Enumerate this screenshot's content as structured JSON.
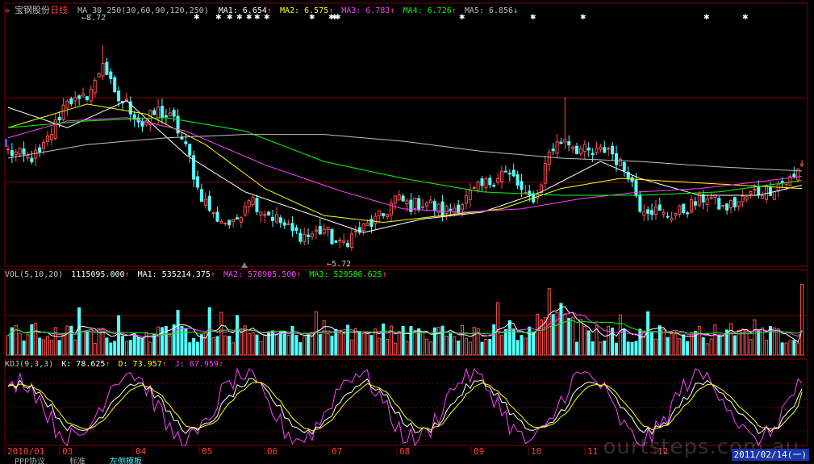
{
  "header": {
    "stock_name": "宝钢股份",
    "period": "日线",
    "ma_label": "MA_30_250(30,60,90,120,250)",
    "ma1": "MA1: 6.654",
    "ma2": "MA2: 6.575",
    "ma3": "MA3: 6.783",
    "ma4": "MA4: 6.726",
    "ma5": "MA5: 6.856"
  },
  "annotations": {
    "high": "8.72",
    "low": "5.72"
  },
  "vol_header": {
    "label": "VOL(5,10,20)",
    "value": "1115095.000",
    "ma1": "MA1: 535214.375",
    "ma2": "MA2: 578905.500",
    "ma3": "MA3: 529586.625"
  },
  "kdj_header": {
    "label": "KDJ(9,3,3)",
    "k": "K: 78.625",
    "d": "D: 73.957",
    "j": "J: 87.959"
  },
  "x_axis": [
    "2010/01",
    "03",
    "04",
    "05",
    "06",
    "07",
    "08",
    "09",
    "10",
    "11",
    "12"
  ],
  "current_date": "2011/02/14(一)",
  "watermark": "ourtsteps.com.au",
  "bottom_tabs": [
    "PPP协议",
    "标准",
    "左侧模板"
  ],
  "colors": {
    "up": "#ff5050",
    "down": "#54ffff",
    "ma1": "#ffffff",
    "ma2": "#ffff00",
    "ma3": "#ff40ff",
    "ma4": "#00ff00",
    "ma5": "#c0c0c0",
    "grid": "#800000"
  },
  "chart_data": {
    "type": "candlestick",
    "price_range": [
      5.45,
      9.15
    ],
    "high_mark": 8.72,
    "low_mark": 5.72,
    "anchor_closes": [
      [
        0,
        7.15
      ],
      [
        5,
        7.05
      ],
      [
        8,
        7.1
      ],
      [
        12,
        7.55
      ],
      [
        15,
        7.95
      ],
      [
        18,
        7.85
      ],
      [
        22,
        8.15
      ],
      [
        24,
        8.5
      ],
      [
        27,
        7.95
      ],
      [
        30,
        7.85
      ],
      [
        34,
        7.55
      ],
      [
        38,
        7.75
      ],
      [
        42,
        7.6
      ],
      [
        46,
        7.05
      ],
      [
        48,
        6.6
      ],
      [
        52,
        6.2
      ],
      [
        57,
        6.05
      ],
      [
        61,
        6.5
      ],
      [
        64,
        6.3
      ],
      [
        68,
        6.15
      ],
      [
        72,
        5.95
      ],
      [
        76,
        5.9
      ],
      [
        80,
        6.0
      ],
      [
        82,
        5.85
      ],
      [
        84,
        5.75
      ],
      [
        87,
        5.9
      ],
      [
        91,
        6.05
      ],
      [
        95,
        6.2
      ],
      [
        98,
        6.45
      ],
      [
        102,
        6.35
      ],
      [
        106,
        6.4
      ],
      [
        110,
        6.25
      ],
      [
        114,
        6.35
      ],
      [
        118,
        6.55
      ],
      [
        122,
        6.7
      ],
      [
        125,
        6.85
      ],
      [
        128,
        6.75
      ],
      [
        131,
        6.45
      ],
      [
        134,
        6.5
      ],
      [
        137,
        7.15
      ],
      [
        139,
        7.25
      ],
      [
        141,
        7.35
      ],
      [
        144,
        7.2
      ],
      [
        148,
        7.1
      ],
      [
        152,
        7.2
      ],
      [
        155,
        6.95
      ],
      [
        157,
        6.85
      ],
      [
        160,
        6.35
      ],
      [
        163,
        6.3
      ],
      [
        166,
        6.2
      ],
      [
        170,
        6.25
      ],
      [
        173,
        6.35
      ],
      [
        177,
        6.5
      ],
      [
        181,
        6.3
      ],
      [
        185,
        6.4
      ],
      [
        189,
        6.55
      ],
      [
        193,
        6.6
      ],
      [
        196,
        6.7
      ],
      [
        199,
        6.75
      ],
      [
        201,
        7.0
      ]
    ],
    "ma_anchors": {
      "ma1": [
        [
          0,
          7.8
        ],
        [
          15,
          7.5
        ],
        [
          30,
          7.9
        ],
        [
          45,
          7.1
        ],
        [
          60,
          6.55
        ],
        [
          75,
          6.25
        ],
        [
          90,
          5.95
        ],
        [
          105,
          6.15
        ],
        [
          120,
          6.25
        ],
        [
          135,
          6.55
        ],
        [
          150,
          7.0
        ],
        [
          160,
          6.75
        ],
        [
          175,
          6.5
        ],
        [
          190,
          6.5
        ],
        [
          201,
          6.65
        ]
      ],
      "ma2": [
        [
          0,
          7.5
        ],
        [
          20,
          7.85
        ],
        [
          35,
          7.7
        ],
        [
          50,
          7.25
        ],
        [
          65,
          6.6
        ],
        [
          80,
          6.2
        ],
        [
          95,
          6.1
        ],
        [
          110,
          6.2
        ],
        [
          125,
          6.3
        ],
        [
          140,
          6.6
        ],
        [
          155,
          6.75
        ],
        [
          170,
          6.7
        ],
        [
          185,
          6.65
        ],
        [
          201,
          6.6
        ]
      ],
      "ma3": [
        [
          0,
          7.35
        ],
        [
          15,
          7.6
        ],
        [
          30,
          7.65
        ],
        [
          45,
          7.45
        ],
        [
          65,
          6.95
        ],
        [
          85,
          6.55
        ],
        [
          100,
          6.3
        ],
        [
          115,
          6.25
        ],
        [
          130,
          6.3
        ],
        [
          145,
          6.45
        ],
        [
          160,
          6.55
        ],
        [
          175,
          6.6
        ],
        [
          190,
          6.7
        ],
        [
          201,
          6.78
        ]
      ],
      "ma4": [
        [
          0,
          7.5
        ],
        [
          20,
          7.6
        ],
        [
          40,
          7.65
        ],
        [
          60,
          7.45
        ],
        [
          80,
          7.0
        ],
        [
          100,
          6.75
        ],
        [
          120,
          6.55
        ],
        [
          140,
          6.5
        ],
        [
          160,
          6.5
        ],
        [
          180,
          6.55
        ],
        [
          201,
          6.72
        ]
      ],
      "ma5": [
        [
          0,
          7.05
        ],
        [
          20,
          7.25
        ],
        [
          40,
          7.35
        ],
        [
          60,
          7.4
        ],
        [
          80,
          7.4
        ],
        [
          100,
          7.3
        ],
        [
          120,
          7.15
        ],
        [
          140,
          7.05
        ],
        [
          160,
          7.0
        ],
        [
          180,
          6.92
        ],
        [
          201,
          6.86
        ]
      ]
    },
    "volume_range": [
      0,
      1200000
    ],
    "volume_last": 1115095,
    "kdj_range": [
      -10,
      110
    ],
    "kdj_last": {
      "k": 78.625,
      "d": 73.957,
      "j": 87.959
    }
  }
}
